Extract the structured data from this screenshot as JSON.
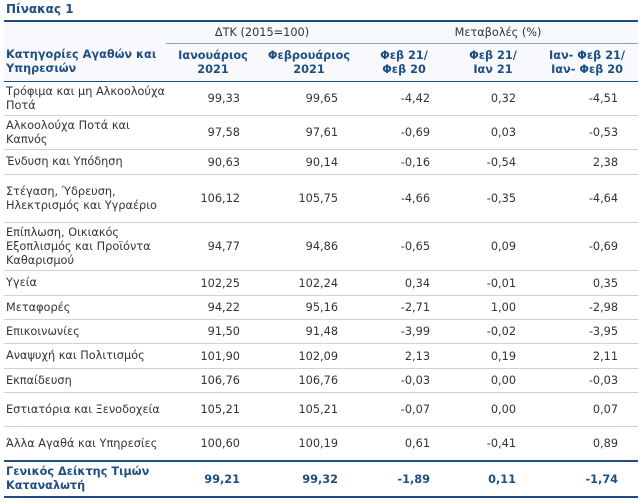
{
  "title": "Πίνακας 1",
  "header": {
    "group_index": "ΔΤΚ (2015=100)",
    "group_change": "Μεταβολές (%)",
    "category_label": "Κατηγορίες Αγαθών και Υπηρεσιών",
    "columns": [
      {
        "line1": "Ιανουάριος",
        "line2": "2021"
      },
      {
        "line1": "Φεβρουάριος",
        "line2": "2021"
      },
      {
        "line1": "Φεβ 21/",
        "line2": "Φεβ 20"
      },
      {
        "line1": "Φεβ 21/",
        "line2": "Ιαν 21"
      },
      {
        "line1": "Ιαν- Φεβ 21/",
        "line2": "Ιαν- Φεβ 20"
      }
    ]
  },
  "rows": [
    {
      "category": "Τρόφιμα και μη Αλκοολούχα Ποτά",
      "jan": "99,33",
      "feb": "99,65",
      "yoy": "-4,42",
      "mom": "0,32",
      "ytd": "-4,51"
    },
    {
      "category": "Αλκοολούχα Ποτά και Καπνός",
      "jan": "97,58",
      "feb": "97,61",
      "yoy": "-0,69",
      "mom": "0,03",
      "ytd": "-0,53"
    },
    {
      "category": "Ένδυση και Υπόδηση",
      "jan": "90,63",
      "feb": "90,14",
      "yoy": "-0,16",
      "mom": "-0,54",
      "ytd": "2,38"
    },
    {
      "category": "Στέγαση, Ύδρευση, Ηλεκτρισμός και Υγραέριο",
      "jan": "106,12",
      "feb": "105,75",
      "yoy": "-4,66",
      "mom": "-0,35",
      "ytd": "-4,64"
    },
    {
      "category": "Επίπλωση, Οικιακός Εξοπλισμός και Προϊόντα Καθαρισμού",
      "jan": "94,77",
      "feb": "94,86",
      "yoy": "-0,65",
      "mom": "0,09",
      "ytd": "-0,69"
    },
    {
      "category": "Υγεία",
      "jan": "102,25",
      "feb": "102,24",
      "yoy": "0,34",
      "mom": "-0,01",
      "ytd": "0,35"
    },
    {
      "category": "Μεταφορές",
      "jan": "94,22",
      "feb": "95,16",
      "yoy": "-2,71",
      "mom": "1,00",
      "ytd": "-2,98"
    },
    {
      "category": "Επικοινωνίες",
      "jan": "91,50",
      "feb": "91,48",
      "yoy": "-3,99",
      "mom": "-0,02",
      "ytd": "-3,95"
    },
    {
      "category": "Αναψυχή και Πολιτισμός",
      "jan": "101,90",
      "feb": "102,09",
      "yoy": "2,13",
      "mom": "0,19",
      "ytd": "2,11"
    },
    {
      "category": "Εκπαίδευση",
      "jan": "106,76",
      "feb": "106,76",
      "yoy": "-0,03",
      "mom": "0,00",
      "ytd": "-0,03"
    },
    {
      "category": "Εστιατόρια και Ξενοδοχεία",
      "jan": "105,21",
      "feb": "105,21",
      "yoy": "-0,07",
      "mom": "0,00",
      "ytd": "0,07"
    },
    {
      "category": "Άλλα Αγαθά και Υπηρεσίες",
      "jan": "100,60",
      "feb": "100,19",
      "yoy": "0,61",
      "mom": "-0,41",
      "ytd": "0,89"
    }
  ],
  "total": {
    "category": "Γενικός Δείκτης Τιμών Καταναλωτή",
    "jan": "99,21",
    "feb": "99,32",
    "yoy": "-1,89",
    "mom": "0,11",
    "ytd": "-1,74"
  },
  "colors": {
    "accent": "#1f4f82",
    "rule": "#c9d3df"
  }
}
